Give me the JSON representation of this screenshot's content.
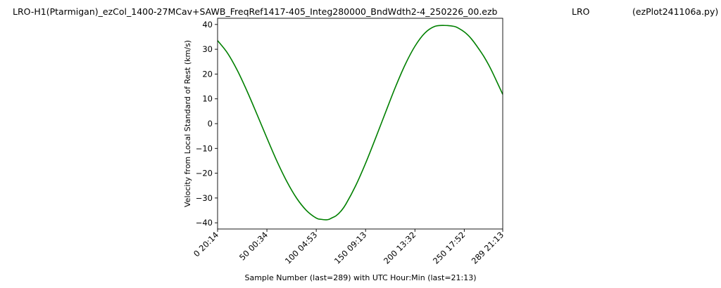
{
  "title": {
    "file": "LRO-H1(Ptarmigan)_ezCol_1400-27MCav+SAWB_FreqRef1417-405_Integ280000_BndWdth2-4_250226_00.ezb",
    "station": "LRO",
    "program": "(ezPlot241106a.py)"
  },
  "chart_data": {
    "type": "line",
    "xlabel": "Sample Number (last=289) with UTC Hour:Min (last=21:13)",
    "ylabel": "Velocity from Local Standard of Rest (km/s)",
    "xlim": [
      0,
      289
    ],
    "ylim": [
      -42.5,
      42.5
    ],
    "grid": false,
    "x_ticks": [
      {
        "value": 0,
        "label": "0  20:14"
      },
      {
        "value": 50,
        "label": "50  00:34"
      },
      {
        "value": 100,
        "label": "100  04:53"
      },
      {
        "value": 150,
        "label": "150  09:13"
      },
      {
        "value": 200,
        "label": "200  13:32"
      },
      {
        "value": 250,
        "label": "250  17:52"
      },
      {
        "value": 289,
        "label": "289  21:13"
      }
    ],
    "y_ticks": [
      40,
      30,
      20,
      10,
      0,
      -10,
      -20,
      -30,
      -40
    ],
    "series": [
      {
        "color": "#008000",
        "x": [
          0,
          10,
          20,
          30,
          40,
          50,
          60,
          70,
          80,
          90,
          100,
          105,
          110,
          113,
          116,
          120,
          125,
          130,
          140,
          150,
          160,
          170,
          180,
          190,
          200,
          210,
          220,
          230,
          240,
          245,
          250,
          254,
          257,
          260,
          265,
          270,
          275,
          280,
          289
        ],
        "y": [
          33.5,
          28.5,
          21.5,
          13,
          3.7,
          -5.8,
          -15,
          -23.2,
          -30,
          -35,
          -38.1,
          -38.6,
          -38.8,
          -38.6,
          -38,
          -37.2,
          -35.3,
          -32.5,
          -25,
          -16,
          -6,
          4.3,
          14.5,
          23.7,
          31.2,
          36.5,
          39.2,
          39.6,
          39.2,
          38.3,
          37,
          35.6,
          34.3,
          32.8,
          30,
          27,
          23.5,
          19.5,
          11.8
        ]
      }
    ]
  }
}
